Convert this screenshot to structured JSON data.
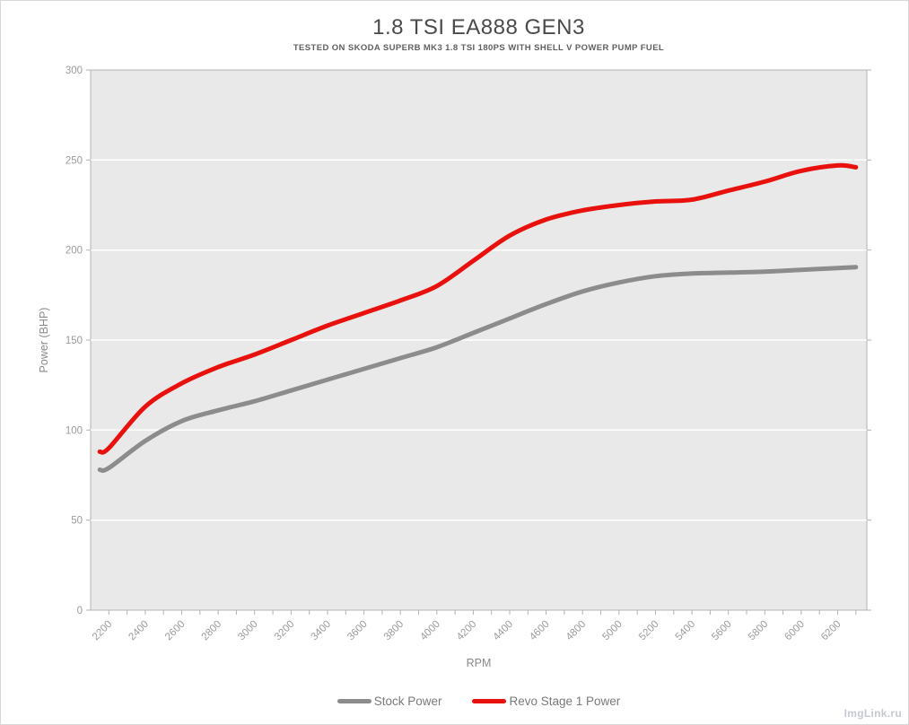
{
  "page": {
    "watermark": "ImgLink.ru"
  },
  "chart_data": {
    "type": "line",
    "title": "1.8 TSI EA888 GEN3",
    "subtitle": "TESTED ON SKODA SUPERB MK3 1.8 TSI 180PS WITH SHELL V POWER PUMP FUEL",
    "xlabel": "RPM",
    "ylabel": "Power (BHP)",
    "xlim": [
      2100,
      6360
    ],
    "ylim": [
      0,
      300
    ],
    "y_ticks": [
      0,
      50,
      100,
      150,
      200,
      250,
      300
    ],
    "x_tick_labels": [
      "2200",
      "2400",
      "2600",
      "2800",
      "3000",
      "3200",
      "3400",
      "3600",
      "3800",
      "4000",
      "4200",
      "4400",
      "4600",
      "4800",
      "5000",
      "5200",
      "5400",
      "5600",
      "5800",
      "6000",
      "6200"
    ],
    "x_minor_tick_step": 100,
    "grid": "horizontal white gridlines on light gray plot background",
    "legend_position": "bottom-center",
    "colors": {
      "plot_bg": "#e9e9e9",
      "gridline": "#ffffff",
      "axis": "#b3b3b3",
      "tick_text": "#9b9b9b",
      "axis_title_text": "#8a8a8a",
      "stock": "#8c8c8c",
      "revo": "#e8110d"
    },
    "x": [
      2150,
      2200,
      2400,
      2600,
      2800,
      3000,
      3200,
      3400,
      3600,
      3800,
      4000,
      4200,
      4400,
      4600,
      4800,
      5000,
      5200,
      5400,
      5600,
      5800,
      6000,
      6200,
      6300
    ],
    "series": [
      {
        "name": "Stock Power",
        "color": "#8c8c8c",
        "values": [
          78,
          79,
          94,
          105,
          111,
          116,
          122,
          128,
          134,
          140,
          146,
          154,
          162,
          170,
          177,
          182,
          185.5,
          187,
          187.5,
          188,
          189,
          190,
          190.5
        ]
      },
      {
        "name": "Revo Stage 1 Power",
        "color": "#e8110d",
        "values": [
          88,
          90,
          113,
          126,
          135,
          142,
          150,
          158,
          165,
          172,
          180,
          194,
          208,
          217,
          222,
          225,
          227,
          228,
          233,
          238,
          244,
          247,
          246
        ]
      }
    ]
  }
}
